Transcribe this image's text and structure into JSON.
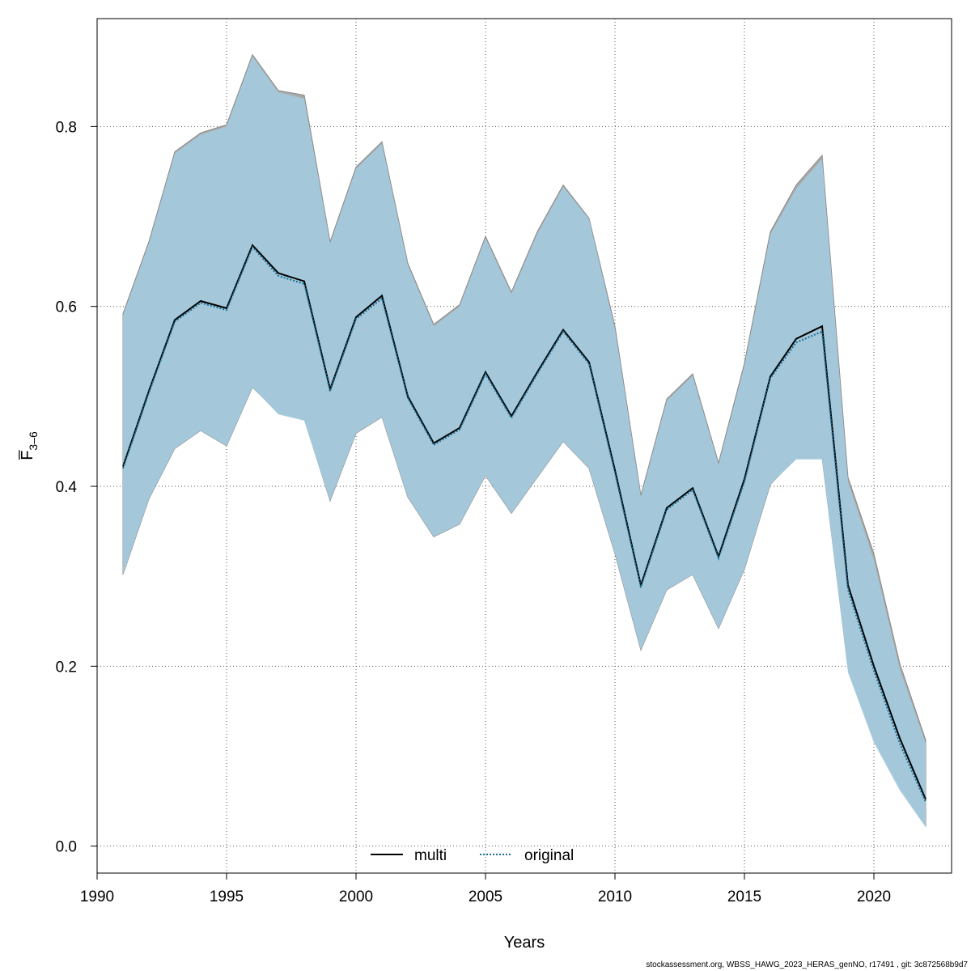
{
  "chart_data": {
    "type": "area",
    "xlabel": "Years",
    "ylabel": "F̅",
    "ylabel_sub": "3–6",
    "xlim": [
      1990,
      2023
    ],
    "ylim": [
      -0.03,
      0.92
    ],
    "x_ticks": [
      1990,
      1995,
      2000,
      2005,
      2010,
      2015,
      2020
    ],
    "y_ticks": [
      0.0,
      0.2,
      0.4,
      0.6,
      0.8
    ],
    "x_tick_labels": [
      "1990",
      "1995",
      "2000",
      "2005",
      "2010",
      "2015",
      "2020"
    ],
    "y_tick_labels": [
      "0.0",
      "0.2",
      "0.4",
      "0.6",
      "0.8"
    ],
    "grid": true,
    "legend_position": "bottom-center",
    "x": [
      1991,
      1992,
      1993,
      1994,
      1995,
      1996,
      1997,
      1998,
      1999,
      2000,
      2001,
      2002,
      2003,
      2004,
      2005,
      2006,
      2007,
      2008,
      2009,
      2010,
      2011,
      2012,
      2013,
      2014,
      2015,
      2016,
      2017,
      2018,
      2019,
      2020,
      2021,
      2022
    ],
    "series": [
      {
        "name": "multi",
        "style": "solid",
        "color": "#000000",
        "band_color": "#a9a9a9",
        "values": [
          0.422,
          0.506,
          0.585,
          0.606,
          0.598,
          0.668,
          0.637,
          0.628,
          0.508,
          0.588,
          0.612,
          0.5,
          0.448,
          0.465,
          0.527,
          0.478,
          0.527,
          0.574,
          0.538,
          0.418,
          0.29,
          0.376,
          0.398,
          0.322,
          0.408,
          0.522,
          0.564,
          0.578,
          0.29,
          0.2,
          0.12,
          0.052
        ],
        "lower": [
          0.302,
          0.386,
          0.442,
          0.462,
          0.445,
          0.51,
          0.482,
          0.475,
          0.384,
          0.459,
          0.477,
          0.388,
          0.344,
          0.358,
          0.412,
          0.37,
          0.41,
          0.45,
          0.42,
          0.325,
          0.218,
          0.285,
          0.302,
          0.242,
          0.308,
          0.402,
          0.432,
          0.432,
          0.198,
          0.121,
          0.067,
          0.023
        ],
        "upper": [
          0.592,
          0.672,
          0.772,
          0.793,
          0.802,
          0.88,
          0.84,
          0.835,
          0.672,
          0.755,
          0.783,
          0.648,
          0.58,
          0.602,
          0.678,
          0.616,
          0.683,
          0.735,
          0.698,
          0.578,
          0.39,
          0.497,
          0.525,
          0.426,
          0.537,
          0.683,
          0.735,
          0.768,
          0.41,
          0.325,
          0.203,
          0.118
        ]
      },
      {
        "name": "original",
        "style": "dotted",
        "color": "#1a6e96",
        "band_color": "#a3c9dc",
        "values": [
          0.42,
          0.504,
          0.583,
          0.604,
          0.596,
          0.666,
          0.634,
          0.625,
          0.506,
          0.586,
          0.609,
          0.498,
          0.446,
          0.463,
          0.525,
          0.476,
          0.525,
          0.572,
          0.536,
          0.415,
          0.288,
          0.374,
          0.396,
          0.32,
          0.405,
          0.52,
          0.56,
          0.572,
          0.285,
          0.195,
          0.114,
          0.049
        ],
        "lower": [
          0.302,
          0.386,
          0.442,
          0.462,
          0.445,
          0.51,
          0.48,
          0.473,
          0.384,
          0.459,
          0.477,
          0.388,
          0.344,
          0.358,
          0.412,
          0.37,
          0.41,
          0.45,
          0.42,
          0.325,
          0.218,
          0.285,
          0.302,
          0.242,
          0.308,
          0.402,
          0.43,
          0.43,
          0.193,
          0.115,
          0.062,
          0.021
        ],
        "upper": [
          0.59,
          0.67,
          0.77,
          0.791,
          0.8,
          0.878,
          0.838,
          0.831,
          0.67,
          0.753,
          0.781,
          0.646,
          0.578,
          0.6,
          0.676,
          0.614,
          0.681,
          0.733,
          0.697,
          0.575,
          0.388,
          0.495,
          0.523,
          0.424,
          0.534,
          0.68,
          0.731,
          0.764,
          0.405,
          0.318,
          0.197,
          0.114
        ]
      }
    ],
    "colors": {
      "multi_band": "#a9a9a9",
      "original_band": "#a3c9dc",
      "original_line": "#1a6e96",
      "multi_line": "#000000",
      "grid": "#555555"
    }
  },
  "footer_text": "stockassessment.org, WBSS_HAWG_2023_HERAS_genNO, r17491 , git: 3c872568b9d7"
}
